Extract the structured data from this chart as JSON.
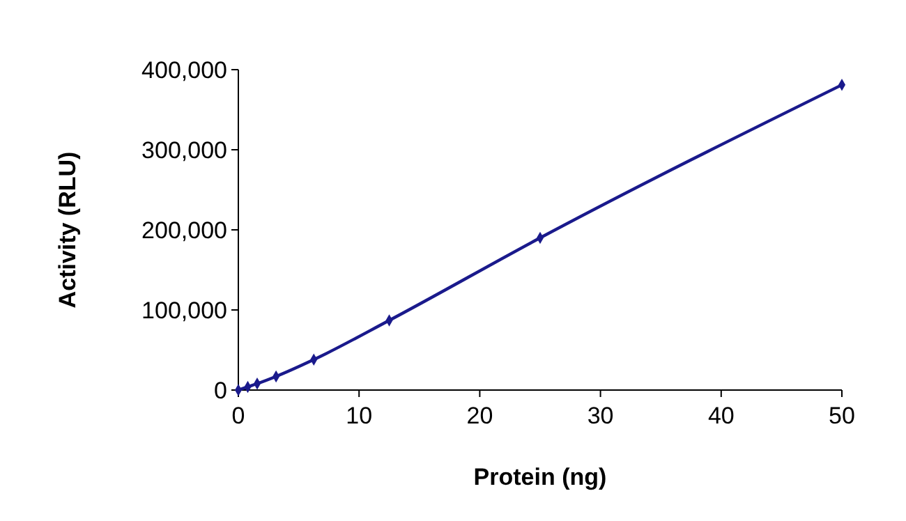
{
  "chart_data": {
    "type": "line",
    "xlabel": "Protein (ng)",
    "ylabel": "Activity (RLU)",
    "x": [
      0,
      0.78,
      1.56,
      3.125,
      6.25,
      12.5,
      25,
      50
    ],
    "series": [
      {
        "color": "#1a1a8c",
        "values": [
          0,
          4000,
          8000,
          17000,
          38000,
          87000,
          190000,
          381000
        ]
      }
    ],
    "xlim": [
      0,
      50
    ],
    "xticks": [
      0,
      10,
      20,
      30,
      40,
      50
    ],
    "ylim": [
      0,
      400000
    ],
    "yticks": [
      {
        "value": 0,
        "label": "0"
      },
      {
        "value": 100000,
        "label": "100,000"
      },
      {
        "value": 200000,
        "label": "200,000"
      },
      {
        "value": 300000,
        "label": "300,000"
      },
      {
        "value": 400000,
        "label": "400,000"
      }
    ],
    "marker": "diamond",
    "line_style": "solid",
    "grid": false
  }
}
